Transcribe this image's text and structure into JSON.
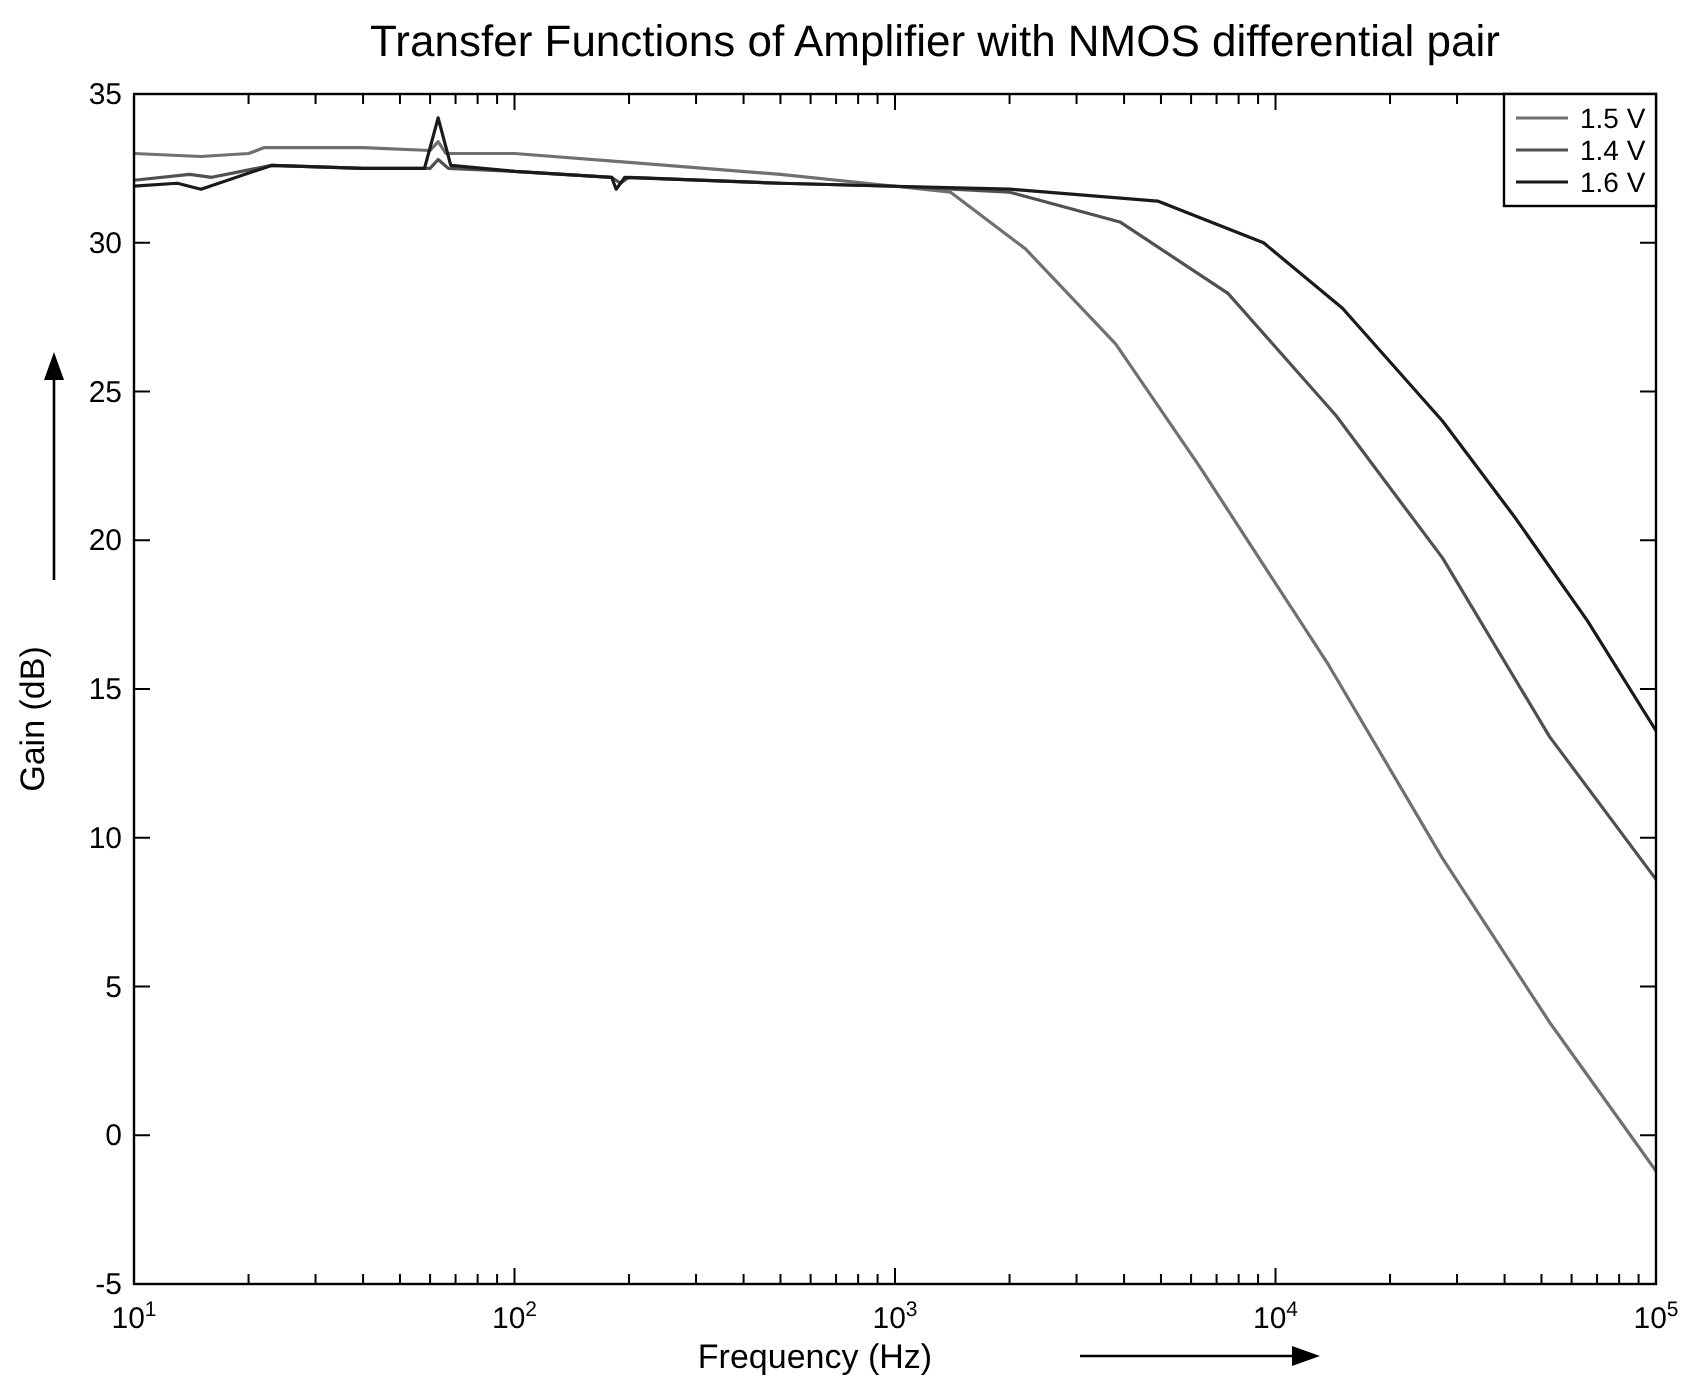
{
  "chart_data": {
    "type": "line",
    "title": "Transfer Functions of Amplifier with NMOS differential pair",
    "xlabel": "Frequency (Hz)",
    "ylabel": "Gain (dB)",
    "log": "x",
    "xlim": [
      10,
      100000
    ],
    "ylim": [
      -5,
      35
    ],
    "xticks": [
      {
        "value": 10,
        "label": "10$^{1}$"
      },
      {
        "value": 20,
        "label": null
      },
      {
        "value": 30,
        "label": null
      },
      {
        "value": 40,
        "label": null
      },
      {
        "value": 50,
        "label": null
      },
      {
        "value": 60,
        "label": null
      },
      {
        "value": 70,
        "label": null
      },
      {
        "value": 80,
        "label": null
      },
      {
        "value": 90,
        "label": null
      },
      {
        "value": 100,
        "label": "10$^{2}$"
      },
      {
        "value": 200,
        "label": null
      },
      {
        "value": 300,
        "label": null
      },
      {
        "value": 400,
        "label": null
      },
      {
        "value": 500,
        "label": null
      },
      {
        "value": 600,
        "label": null
      },
      {
        "value": 700,
        "label": null
      },
      {
        "value": 800,
        "label": null
      },
      {
        "value": 900,
        "label": null
      },
      {
        "value": 1000,
        "label": "10$^{3}$"
      },
      {
        "value": 2000,
        "label": null
      },
      {
        "value": 3000,
        "label": null
      },
      {
        "value": 4000,
        "label": null
      },
      {
        "value": 5000,
        "label": null
      },
      {
        "value": 6000,
        "label": null
      },
      {
        "value": 7000,
        "label": null
      },
      {
        "value": 8000,
        "label": null
      },
      {
        "value": 9000,
        "label": null
      },
      {
        "value": 10000,
        "label": "10$^{4}$"
      },
      {
        "value": 20000,
        "label": null
      },
      {
        "value": 30000,
        "label": null
      },
      {
        "value": 40000,
        "label": null
      },
      {
        "value": 50000,
        "label": null
      },
      {
        "value": 60000,
        "label": null
      },
      {
        "value": 70000,
        "label": null
      },
      {
        "value": 80000,
        "label": null
      },
      {
        "value": 90000,
        "label": null
      },
      {
        "value": 100000,
        "label": "10$^{5}$"
      }
    ],
    "yticks": [
      -5,
      0,
      5,
      10,
      15,
      20,
      25,
      30,
      35
    ],
    "grid": false,
    "legend": "top right",
    "marker": "none",
    "line_style": "solid",
    "series": [
      {
        "name": "1.5 V",
        "color": "#707070",
        "x": [
          10,
          15,
          20,
          22,
          40,
          60,
          63,
          66,
          100,
          200,
          500,
          1000,
          1400,
          2200,
          3800,
          6300,
          13800,
          27500,
          52500,
          100000
        ],
        "values": [
          33.0,
          32.9,
          33.0,
          33.2,
          33.2,
          33.1,
          33.4,
          33.0,
          33.0,
          32.7,
          32.3,
          31.9,
          31.7,
          29.8,
          26.6,
          22.5,
          15.8,
          9.3,
          3.8,
          -1.2
        ]
      },
      {
        "name": "1.4 V",
        "color": "#505050",
        "x": [
          10,
          14,
          16,
          23,
          40,
          60,
          63,
          67,
          100,
          180,
          190,
          200,
          500,
          1000,
          2000,
          3900,
          7500,
          14400,
          27500,
          52500,
          100000
        ],
        "values": [
          32.1,
          32.3,
          32.2,
          32.6,
          32.5,
          32.5,
          32.8,
          32.5,
          32.4,
          32.2,
          32.0,
          32.2,
          32.0,
          31.9,
          31.7,
          30.7,
          28.3,
          24.2,
          19.4,
          13.4,
          8.6
        ]
      },
      {
        "name": "1.6 V",
        "color": "#1a1a1a",
        "x": [
          10,
          13,
          15,
          23,
          40,
          58,
          63,
          68,
          100,
          180,
          185,
          195,
          500,
          1000,
          2000,
          4900,
          9300,
          15000,
          27500,
          42400,
          66000,
          100000
        ],
        "values": [
          31.9,
          32.0,
          31.8,
          32.6,
          32.5,
          32.5,
          34.2,
          32.6,
          32.4,
          32.2,
          31.8,
          32.2,
          32.0,
          31.9,
          31.8,
          31.4,
          30.0,
          27.8,
          24.0,
          20.8,
          17.3,
          13.6
        ]
      }
    ]
  }
}
